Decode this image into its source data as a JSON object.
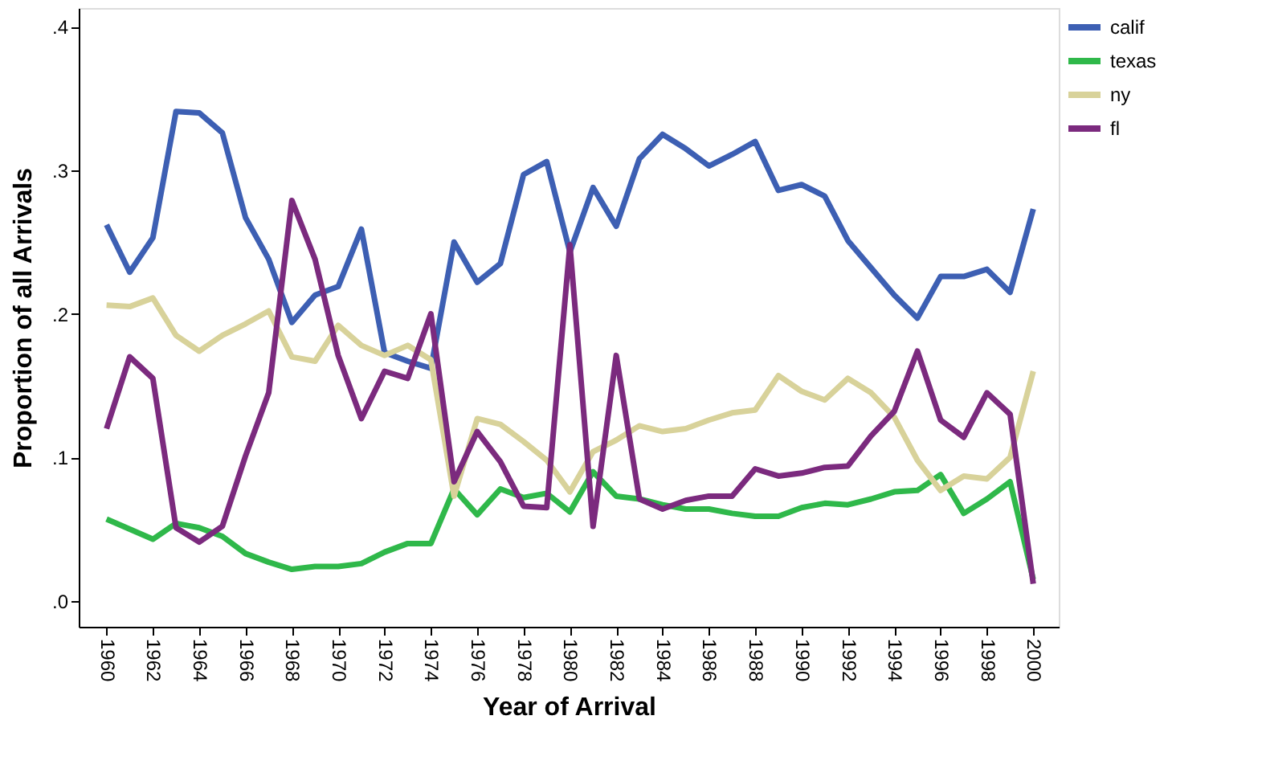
{
  "chart_data": {
    "type": "line",
    "xlabel": "Year of Arrival",
    "ylabel": "Proportion of all Arrivals",
    "x": [
      1960,
      1961,
      1962,
      1963,
      1964,
      1965,
      1966,
      1967,
      1968,
      1969,
      1970,
      1971,
      1972,
      1973,
      1974,
      1975,
      1976,
      1977,
      1978,
      1979,
      1980,
      1981,
      1982,
      1983,
      1984,
      1985,
      1986,
      1987,
      1988,
      1989,
      1990,
      1991,
      1992,
      1993,
      1994,
      1995,
      1996,
      1997,
      1998,
      1999,
      2000
    ],
    "series": [
      {
        "name": "calif",
        "color": "#3d5fb3",
        "values": [
          0.262,
          0.229,
          0.253,
          0.341,
          0.34,
          0.326,
          0.267,
          0.238,
          0.194,
          0.213,
          0.219,
          0.259,
          0.173,
          0.167,
          0.162,
          0.25,
          0.222,
          0.235,
          0.297,
          0.306,
          0.243,
          0.288,
          0.261,
          0.308,
          0.325,
          0.315,
          0.303,
          0.311,
          0.32,
          0.286,
          0.29,
          0.282,
          0.251,
          0.232,
          0.213,
          0.197,
          0.226,
          0.226,
          0.231,
          0.215,
          0.273
        ]
      },
      {
        "name": "texas",
        "color": "#2fb84a",
        "values": [
          0.057,
          0.05,
          0.043,
          0.054,
          0.051,
          0.045,
          0.033,
          0.027,
          0.022,
          0.024,
          0.024,
          0.026,
          0.034,
          0.04,
          0.04,
          0.078,
          0.06,
          0.078,
          0.072,
          0.075,
          0.062,
          0.09,
          0.073,
          0.071,
          0.067,
          0.064,
          0.064,
          0.061,
          0.059,
          0.059,
          0.065,
          0.068,
          0.067,
          0.071,
          0.076,
          0.077,
          0.088,
          0.061,
          0.071,
          0.083,
          0.015
        ]
      },
      {
        "name": "ny",
        "color": "#d8d29a",
        "values": [
          0.206,
          0.205,
          0.211,
          0.185,
          0.174,
          0.185,
          0.193,
          0.202,
          0.17,
          0.167,
          0.192,
          0.178,
          0.171,
          0.178,
          0.168,
          0.073,
          0.127,
          0.123,
          0.111,
          0.098,
          0.076,
          0.104,
          0.112,
          0.122,
          0.118,
          0.12,
          0.126,
          0.131,
          0.133,
          0.157,
          0.146,
          0.14,
          0.155,
          0.145,
          0.128,
          0.098,
          0.077,
          0.087,
          0.085,
          0.1,
          0.16
        ]
      },
      {
        "name": "fl",
        "color": "#7b2a7e",
        "values": [
          0.12,
          0.17,
          0.155,
          0.051,
          0.041,
          0.052,
          0.101,
          0.145,
          0.279,
          0.238,
          0.171,
          0.127,
          0.16,
          0.155,
          0.2,
          0.083,
          0.118,
          0.097,
          0.066,
          0.065,
          0.248,
          0.052,
          0.171,
          0.071,
          0.064,
          0.07,
          0.073,
          0.073,
          0.092,
          0.087,
          0.089,
          0.093,
          0.094,
          0.115,
          0.132,
          0.174,
          0.126,
          0.114,
          0.145,
          0.13,
          0.012
        ]
      }
    ],
    "xlim": [
      1958.8,
      2001.1
    ],
    "xticks": [
      1960,
      1962,
      1964,
      1966,
      1968,
      1970,
      1972,
      1974,
      1976,
      1978,
      1980,
      1982,
      1984,
      1986,
      1988,
      1990,
      1992,
      1994,
      1996,
      1998,
      2000
    ],
    "ylim": [
      -0.018,
      0.413
    ],
    "yticks": [
      {
        "value": 0,
        "label": ".0"
      },
      {
        "value": 0.1,
        "label": ".1"
      },
      {
        "value": 0.2,
        "label": ".2"
      },
      {
        "value": 0.3,
        "label": ".3"
      },
      {
        "value": 0.4,
        "label": ".4"
      }
    ],
    "grid": false,
    "legend": "top right",
    "line_style": "solid",
    "marker": "none"
  }
}
